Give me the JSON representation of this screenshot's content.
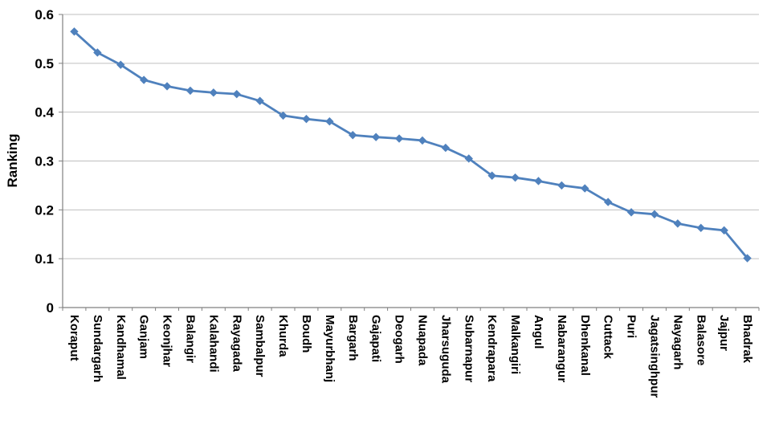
{
  "chart_data": {
    "type": "line",
    "title": "",
    "xlabel": "",
    "ylabel": "Ranking",
    "ylim": [
      0,
      0.6
    ],
    "ytick_step": 0.1,
    "ytick_labels": [
      "0",
      "0.1",
      "0.2",
      "0.3",
      "0.4",
      "0.5",
      "0.6"
    ],
    "grid": true,
    "legend": "none",
    "marker": "diamond",
    "series_color": "#4F81BD",
    "style": {
      "grid": "#BFBFBF",
      "axis": "#808080",
      "text": "#000000",
      "background": "#FFFFFF"
    },
    "categories": [
      "Koraput",
      "Sundargarh",
      "Kandhamal",
      "Ganjam",
      "Keonjhar",
      "Balangir",
      "Kalahandi",
      "Rayagada",
      "Sambalpur",
      "Khurda",
      "Boudh",
      "Mayurbhanj",
      "Bargarh",
      "Gajapati",
      "Deogarh",
      "Nuapada",
      "Jharsuguda",
      "Subarnapur",
      "Kendrapara",
      "Malkangiri",
      "Angul",
      "Nabarangur",
      "Dhenkanal",
      "Cuttack",
      "Puri",
      "Jagatsinghpur",
      "Nayagarh",
      "Balasore",
      "Jajpur",
      "Bhadrak"
    ],
    "values": [
      0.565,
      0.522,
      0.497,
      0.466,
      0.453,
      0.444,
      0.44,
      0.437,
      0.423,
      0.393,
      0.386,
      0.381,
      0.353,
      0.349,
      0.346,
      0.342,
      0.327,
      0.305,
      0.27,
      0.266,
      0.259,
      0.25,
      0.244,
      0.216,
      0.195,
      0.191,
      0.172,
      0.163,
      0.158,
      0.101
    ]
  }
}
